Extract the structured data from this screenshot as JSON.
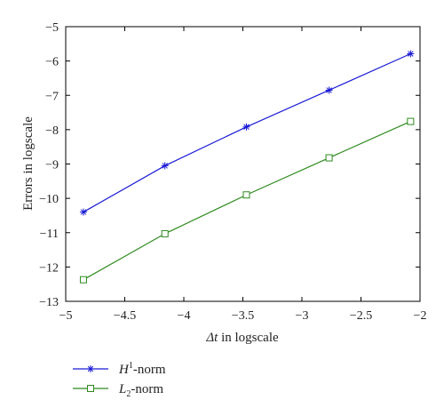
{
  "chart_data": {
    "type": "line",
    "xlabel_symbol": "Δt",
    "xlabel_rest": " in logscale",
    "ylabel": "Errors in logscale",
    "xlim": [
      -5,
      -2
    ],
    "ylim": [
      -13,
      -5
    ],
    "xticks": [
      -5,
      -4.5,
      -4,
      -3.5,
      -3,
      -2.5,
      -2
    ],
    "xtick_labels": [
      "−5",
      "−4.5",
      "−4",
      "−3.5",
      "−3",
      "−2.5",
      "−2"
    ],
    "yticks": [
      -13,
      -12,
      -11,
      -10,
      -9,
      -8,
      -7,
      -6,
      -5
    ],
    "ytick_labels": [
      "−13",
      "−12",
      "−11",
      "−10",
      "−9",
      "−8",
      "−7",
      "−6",
      "−5"
    ],
    "grid": false,
    "legend_position": "below",
    "x": [
      -4.85,
      -4.16,
      -3.47,
      -2.77,
      -2.08
    ],
    "series": [
      {
        "name_main": "H",
        "name_script": "1",
        "name_suffix": "-norm",
        "values": [
          -10.4,
          -9.05,
          -7.92,
          -6.85,
          -5.79
        ],
        "color": "#1a1ad6",
        "marker": "asterisk"
      },
      {
        "name_main": "L",
        "name_script": "2",
        "name_suffix": "-norm",
        "values": [
          -12.37,
          -11.03,
          -9.9,
          -8.82,
          -7.76
        ],
        "color": "#2e8b1e",
        "marker": "square"
      }
    ]
  }
}
